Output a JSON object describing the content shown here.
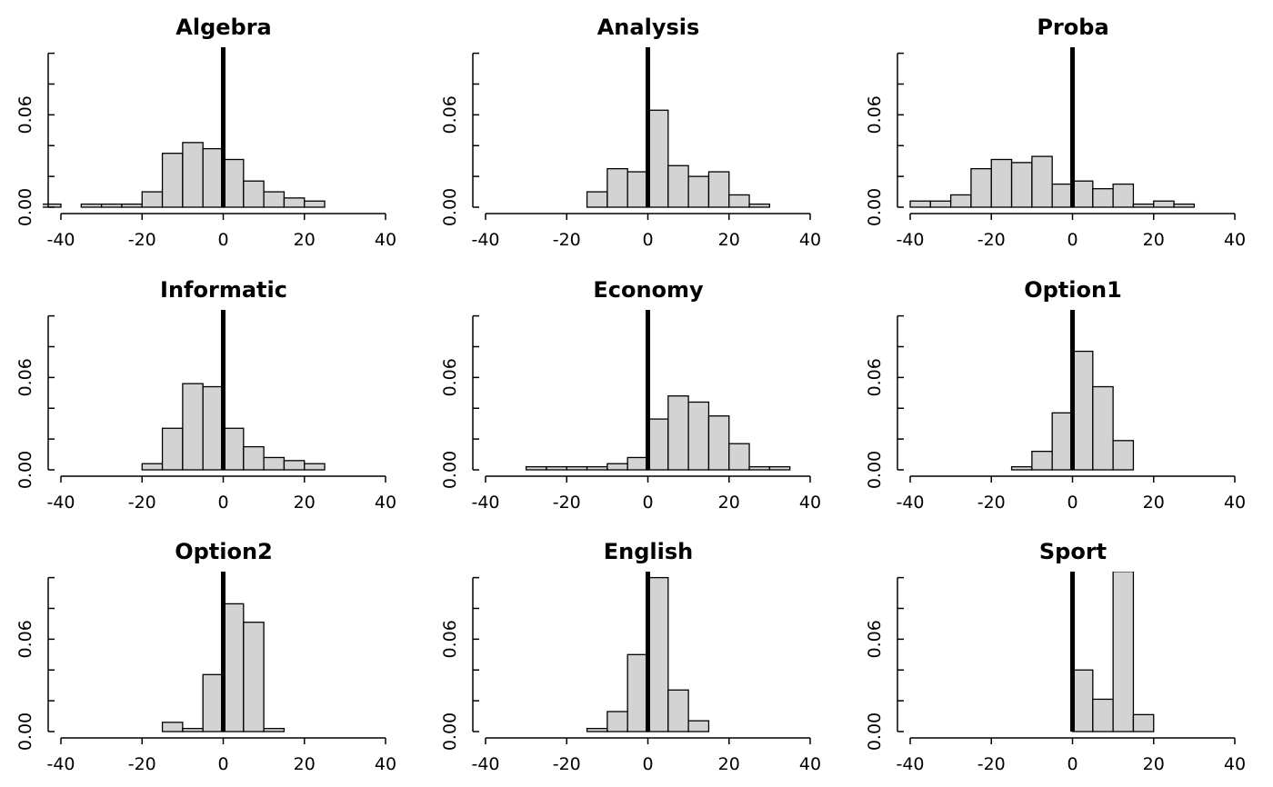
{
  "chart_data": [
    {
      "type": "bar",
      "title": "Algebra",
      "bin_width": 5,
      "bin_starts": [
        -45,
        -40,
        -35,
        -30,
        -25,
        -20,
        -15,
        -10,
        -5,
        0,
        5,
        10,
        15,
        20,
        25,
        30
      ],
      "values": [
        0.002,
        0,
        0.002,
        0.002,
        0.002,
        0.01,
        0.035,
        0.042,
        0.038,
        0.031,
        0.017,
        0.01,
        0.006,
        0.004,
        0,
        0
      ],
      "xlim": [
        -40,
        40
      ],
      "ylim": [
        0,
        0.1
      ],
      "x_ticks": [
        "-40",
        "-20",
        "0",
        "20",
        "40"
      ],
      "y_tick_labels": [
        "0.00",
        "0.06"
      ],
      "reference_line_x": 0
    },
    {
      "type": "bar",
      "title": "Analysis",
      "bin_width": 5,
      "bin_starts": [
        -45,
        -40,
        -35,
        -30,
        -25,
        -20,
        -15,
        -10,
        -5,
        0,
        5,
        10,
        15,
        20,
        25,
        30
      ],
      "values": [
        0,
        0,
        0,
        0,
        0,
        0,
        0.01,
        0.025,
        0.023,
        0.063,
        0.027,
        0.02,
        0.023,
        0.008,
        0.002,
        0
      ],
      "xlim": [
        -40,
        40
      ],
      "ylim": [
        0,
        0.1
      ],
      "x_ticks": [
        "-40",
        "-20",
        "0",
        "20",
        "40"
      ],
      "y_tick_labels": [
        "0.00",
        "0.06"
      ],
      "reference_line_x": 0
    },
    {
      "type": "bar",
      "title": "Proba",
      "bin_width": 5,
      "bin_starts": [
        -45,
        -40,
        -35,
        -30,
        -25,
        -20,
        -15,
        -10,
        -5,
        0,
        5,
        10,
        15,
        20,
        25,
        30
      ],
      "values": [
        0,
        0.004,
        0.004,
        0.008,
        0.025,
        0.031,
        0.029,
        0.033,
        0.015,
        0.017,
        0.012,
        0.015,
        0.002,
        0.004,
        0.002,
        0
      ],
      "xlim": [
        -40,
        40
      ],
      "ylim": [
        0,
        0.1
      ],
      "x_ticks": [
        "-40",
        "-20",
        "0",
        "20",
        "40"
      ],
      "y_tick_labels": [
        "0.00",
        "0.06"
      ],
      "reference_line_x": 0
    },
    {
      "type": "bar",
      "title": "Informatic",
      "bin_width": 5,
      "bin_starts": [
        -45,
        -40,
        -35,
        -30,
        -25,
        -20,
        -15,
        -10,
        -5,
        0,
        5,
        10,
        15,
        20,
        25,
        30
      ],
      "values": [
        0,
        0,
        0,
        0,
        0,
        0.004,
        0.027,
        0.056,
        0.054,
        0.027,
        0.015,
        0.008,
        0.006,
        0.004,
        0,
        0
      ],
      "xlim": [
        -40,
        40
      ],
      "ylim": [
        0,
        0.1
      ],
      "x_ticks": [
        "-40",
        "-20",
        "0",
        "20",
        "40"
      ],
      "y_tick_labels": [
        "0.00",
        "0.06"
      ],
      "reference_line_x": 0
    },
    {
      "type": "bar",
      "title": "Economy",
      "bin_width": 5,
      "bin_starts": [
        -45,
        -40,
        -35,
        -30,
        -25,
        -20,
        -15,
        -10,
        -5,
        0,
        5,
        10,
        15,
        20,
        25,
        30
      ],
      "values": [
        0,
        0,
        0,
        0.002,
        0.002,
        0.002,
        0.002,
        0.004,
        0.008,
        0.033,
        0.048,
        0.044,
        0.035,
        0.017,
        0.002,
        0.002
      ],
      "xlim": [
        -40,
        40
      ],
      "ylim": [
        0,
        0.1
      ],
      "x_ticks": [
        "-40",
        "-20",
        "0",
        "20",
        "40"
      ],
      "y_tick_labels": [
        "0.00",
        "0.06"
      ],
      "reference_line_x": 0
    },
    {
      "type": "bar",
      "title": "Option1",
      "bin_width": 5,
      "bin_starts": [
        -45,
        -40,
        -35,
        -30,
        -25,
        -20,
        -15,
        -10,
        -5,
        0,
        5,
        10,
        15,
        20,
        25,
        30
      ],
      "values": [
        0,
        0,
        0,
        0,
        0,
        0,
        0.002,
        0.012,
        0.037,
        0.077,
        0.054,
        0.019,
        0,
        0,
        0,
        0
      ],
      "xlim": [
        -40,
        40
      ],
      "ylim": [
        0,
        0.1
      ],
      "x_ticks": [
        "-40",
        "-20",
        "0",
        "20",
        "40"
      ],
      "y_tick_labels": [
        "0.00",
        "0.06"
      ],
      "reference_line_x": 0
    },
    {
      "type": "bar",
      "title": "Option2",
      "bin_width": 5,
      "bin_starts": [
        -45,
        -40,
        -35,
        -30,
        -25,
        -20,
        -15,
        -10,
        -5,
        0,
        5,
        10,
        15,
        20,
        25,
        30
      ],
      "values": [
        0,
        0,
        0,
        0,
        0,
        0,
        0.006,
        0.002,
        0.037,
        0.083,
        0.071,
        0.002,
        0,
        0,
        0,
        0
      ],
      "xlim": [
        -40,
        40
      ],
      "ylim": [
        0,
        0.1
      ],
      "x_ticks": [
        "-40",
        "-20",
        "0",
        "20",
        "40"
      ],
      "y_tick_labels": [
        "0.00",
        "0.06"
      ],
      "reference_line_x": 0
    },
    {
      "type": "bar",
      "title": "English",
      "bin_width": 5,
      "bin_starts": [
        -45,
        -40,
        -35,
        -30,
        -25,
        -20,
        -15,
        -10,
        -5,
        0,
        5,
        10,
        15,
        20,
        25,
        30
      ],
      "values": [
        0,
        0,
        0,
        0,
        0,
        0,
        0.002,
        0.013,
        0.05,
        0.1,
        0.027,
        0.007,
        0,
        0,
        0,
        0
      ],
      "xlim": [
        -40,
        40
      ],
      "ylim": [
        0,
        0.1
      ],
      "x_ticks": [
        "-40",
        "-20",
        "0",
        "20",
        "40"
      ],
      "y_tick_labels": [
        "0.00",
        "0.06"
      ],
      "reference_line_x": 0
    },
    {
      "type": "bar",
      "title": "Sport",
      "bin_width": 5,
      "bin_starts": [
        -45,
        -40,
        -35,
        -30,
        -25,
        -20,
        -15,
        -10,
        -5,
        0,
        5,
        10,
        15,
        20,
        25,
        30
      ],
      "values": [
        0,
        0,
        0,
        0,
        0,
        0,
        0,
        0,
        0,
        0.04,
        0.021,
        0.104,
        0.011,
        0,
        0,
        0
      ],
      "xlim": [
        -40,
        40
      ],
      "ylim": [
        0,
        0.1
      ],
      "x_ticks": [
        "-40",
        "-20",
        "0",
        "20",
        "40"
      ],
      "y_tick_labels": [
        "0.00",
        "0.06"
      ],
      "reference_line_x": 0
    }
  ]
}
